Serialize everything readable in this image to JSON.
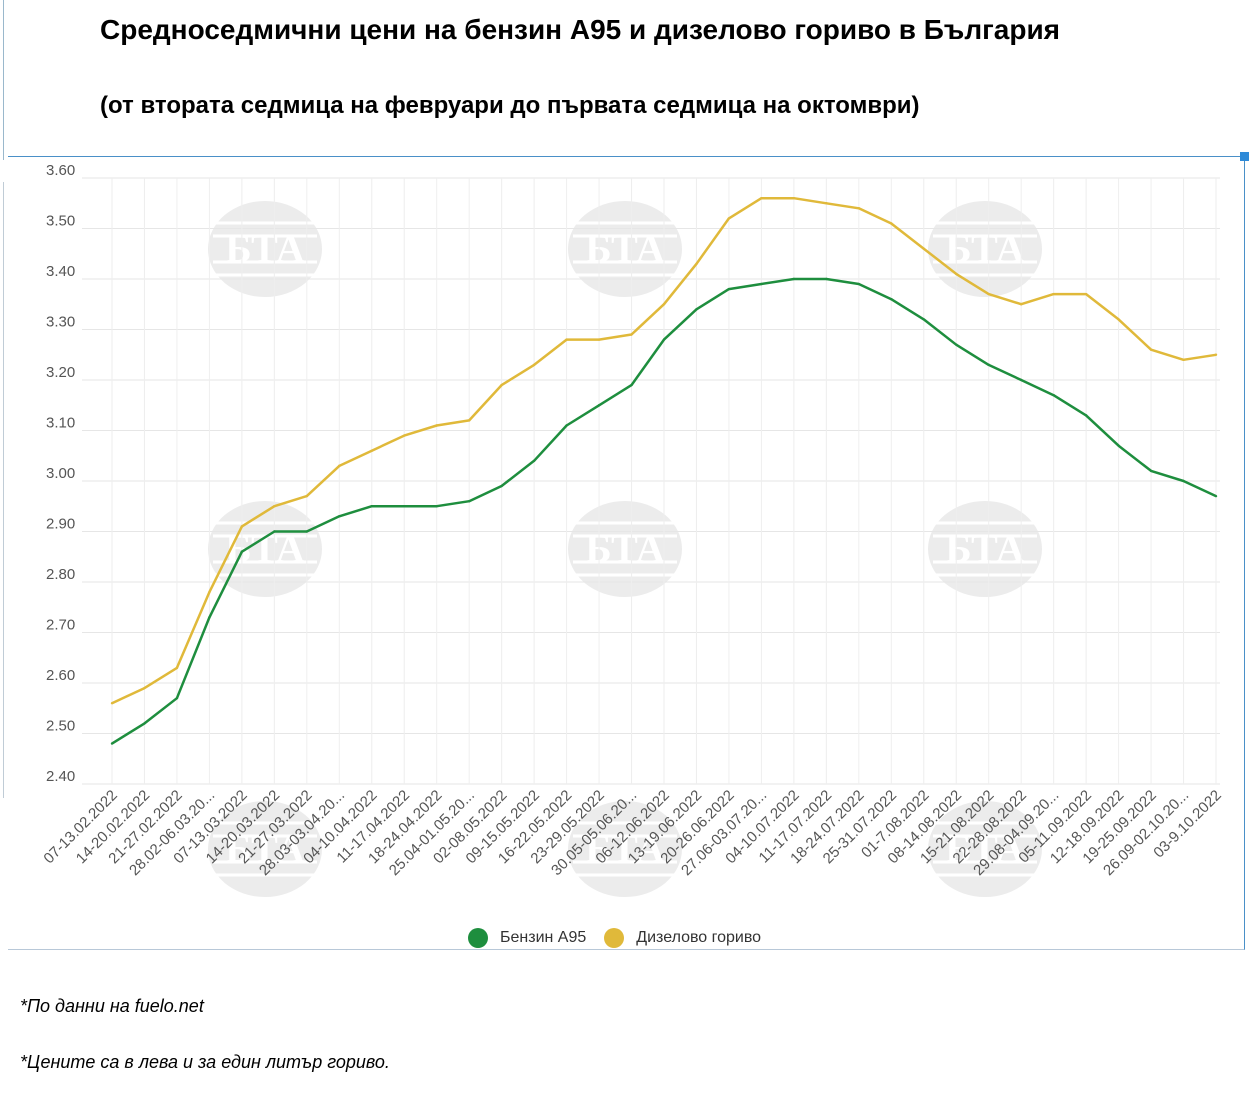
{
  "header": {
    "title": "Средноседмични цени на бензин А95 и дизелово гориво в България",
    "subtitle": "(от втората седмица на февруари до първата седмица на октомври)"
  },
  "notes": {
    "source": "*По данни на fuelo.net",
    "units": "*Цените са в лева и за един литър гориво."
  },
  "watermark": {
    "text": "БТА"
  },
  "chart_data": {
    "type": "line",
    "title": "Средноседмични цени на бензин А95 и дизелово гориво в България",
    "xlabel": "",
    "ylabel": "",
    "ylim": [
      2.4,
      3.6
    ],
    "yticks": [
      "2.40",
      "2.50",
      "2.60",
      "2.70",
      "2.80",
      "2.90",
      "3.00",
      "3.10",
      "3.20",
      "3.30",
      "3.40",
      "3.50",
      "3.60"
    ],
    "grid": true,
    "legend_position": "bottom-center",
    "categories": [
      "07-13.02.2022",
      "14-20.02.2022",
      "21-27.02.2022",
      "28.02-06.03.20...",
      "07-13.03.2022",
      "14-20.03.2022",
      "21-27.03.2022",
      "28.03-03.04.20...",
      "04-10.04.2022",
      "11-17.04.2022",
      "18-24.04.2022",
      "25.04-01.05.20...",
      "02-08.05.2022",
      "09-15.05.2022",
      "16-22.05.2022",
      "23-29.05.2022",
      "30.05-05.06.20...",
      "06-12.06.2022",
      "13-19.06.2022",
      "20-26.06.2022",
      "27.06-03.07.20...",
      "04-10.07.2022",
      "11-17.07.2022",
      "18-24.07.2022",
      "25-31.07.2022",
      "01-7.08.2022",
      "08-14.08.2022",
      "15-21.08.2022",
      "22-28.08.2022",
      "29.08-04.09.20...",
      "05-11.09.2022",
      "12-18.09.2022",
      "19-25.09.2022",
      "26.09-02.10.20...",
      "03-9.10.2022"
    ],
    "series": [
      {
        "name": "Бензин А95",
        "color": "#1e8e3e",
        "values": [
          2.48,
          2.52,
          2.57,
          2.73,
          2.86,
          2.9,
          2.9,
          2.93,
          2.95,
          2.95,
          2.95,
          2.96,
          2.99,
          3.04,
          3.11,
          3.15,
          3.19,
          3.28,
          3.34,
          3.38,
          3.39,
          3.4,
          3.4,
          3.39,
          3.36,
          3.32,
          3.27,
          3.23,
          3.2,
          3.17,
          3.13,
          3.07,
          3.02,
          3.0,
          2.97
        ]
      },
      {
        "name": "Дизелово гориво",
        "color": "#e0b93a",
        "values": [
          2.56,
          2.59,
          2.63,
          2.78,
          2.91,
          2.95,
          2.97,
          3.03,
          3.06,
          3.09,
          3.11,
          3.12,
          3.19,
          3.23,
          3.28,
          3.28,
          3.29,
          3.35,
          3.43,
          3.52,
          3.56,
          3.56,
          3.55,
          3.54,
          3.51,
          3.46,
          3.41,
          3.37,
          3.35,
          3.37,
          3.37,
          3.32,
          3.26,
          3.24,
          3.25
        ]
      }
    ]
  }
}
